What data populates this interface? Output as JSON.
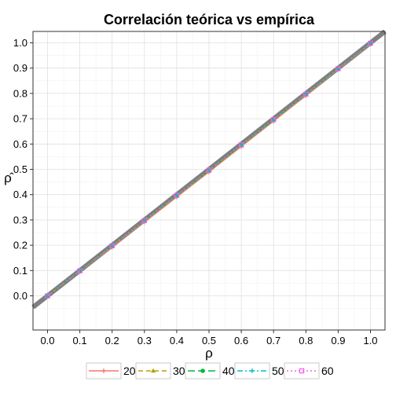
{
  "chart_data": {
    "type": "line",
    "title": "Correlación teórica vs empírica",
    "xlabel": "ρ",
    "ylabel": "ρ̂",
    "xlim": [
      -0.045,
      1.045
    ],
    "ylim": [
      -0.135,
      1.045
    ],
    "x_ticks": [
      "0.0",
      "0.1",
      "0.2",
      "0.3",
      "0.4",
      "0.5",
      "0.6",
      "0.7",
      "0.8",
      "0.9",
      "1.0"
    ],
    "y_ticks": [
      "0.0",
      "0.1",
      "0.2",
      "0.3",
      "0.4",
      "0.5",
      "0.6",
      "0.7",
      "0.8",
      "0.9",
      "1.0"
    ],
    "grid": true,
    "legend_position": "bottom",
    "reference_line": {
      "slope": 1,
      "intercept": 0,
      "color": "#7f7f7f"
    },
    "x": [
      0.0,
      0.1,
      0.2,
      0.3,
      0.4,
      0.5,
      0.6,
      0.7,
      0.8,
      0.9,
      1.0
    ],
    "series": [
      {
        "name": "20",
        "color": "#f8766d",
        "dash": "solid",
        "marker": "plus",
        "values": [
          0.0,
          0.097,
          0.193,
          0.292,
          0.391,
          0.489,
          0.59,
          0.69,
          0.792,
          0.895,
          0.995
        ]
      },
      {
        "name": "30",
        "color": "#b79f00",
        "dash": "dashed",
        "marker": "triangle",
        "values": [
          0.0,
          0.098,
          0.196,
          0.295,
          0.394,
          0.493,
          0.593,
          0.693,
          0.794,
          0.897,
          0.996
        ]
      },
      {
        "name": "40",
        "color": "#00ba38",
        "dash": "longdash",
        "marker": "dot",
        "values": [
          0.0,
          0.099,
          0.197,
          0.297,
          0.396,
          0.495,
          0.595,
          0.695,
          0.796,
          0.897,
          0.997
        ]
      },
      {
        "name": "50",
        "color": "#00bfc4",
        "dash": "dashdot",
        "marker": "plus",
        "values": [
          0.0,
          0.099,
          0.198,
          0.297,
          0.397,
          0.496,
          0.596,
          0.696,
          0.797,
          0.898,
          0.998
        ]
      },
      {
        "name": "60",
        "color": "#f564e3",
        "dash": "dotted",
        "marker": "square",
        "values": [
          0.0,
          0.099,
          0.198,
          0.298,
          0.397,
          0.497,
          0.597,
          0.697,
          0.797,
          0.898,
          0.998
        ]
      }
    ]
  }
}
